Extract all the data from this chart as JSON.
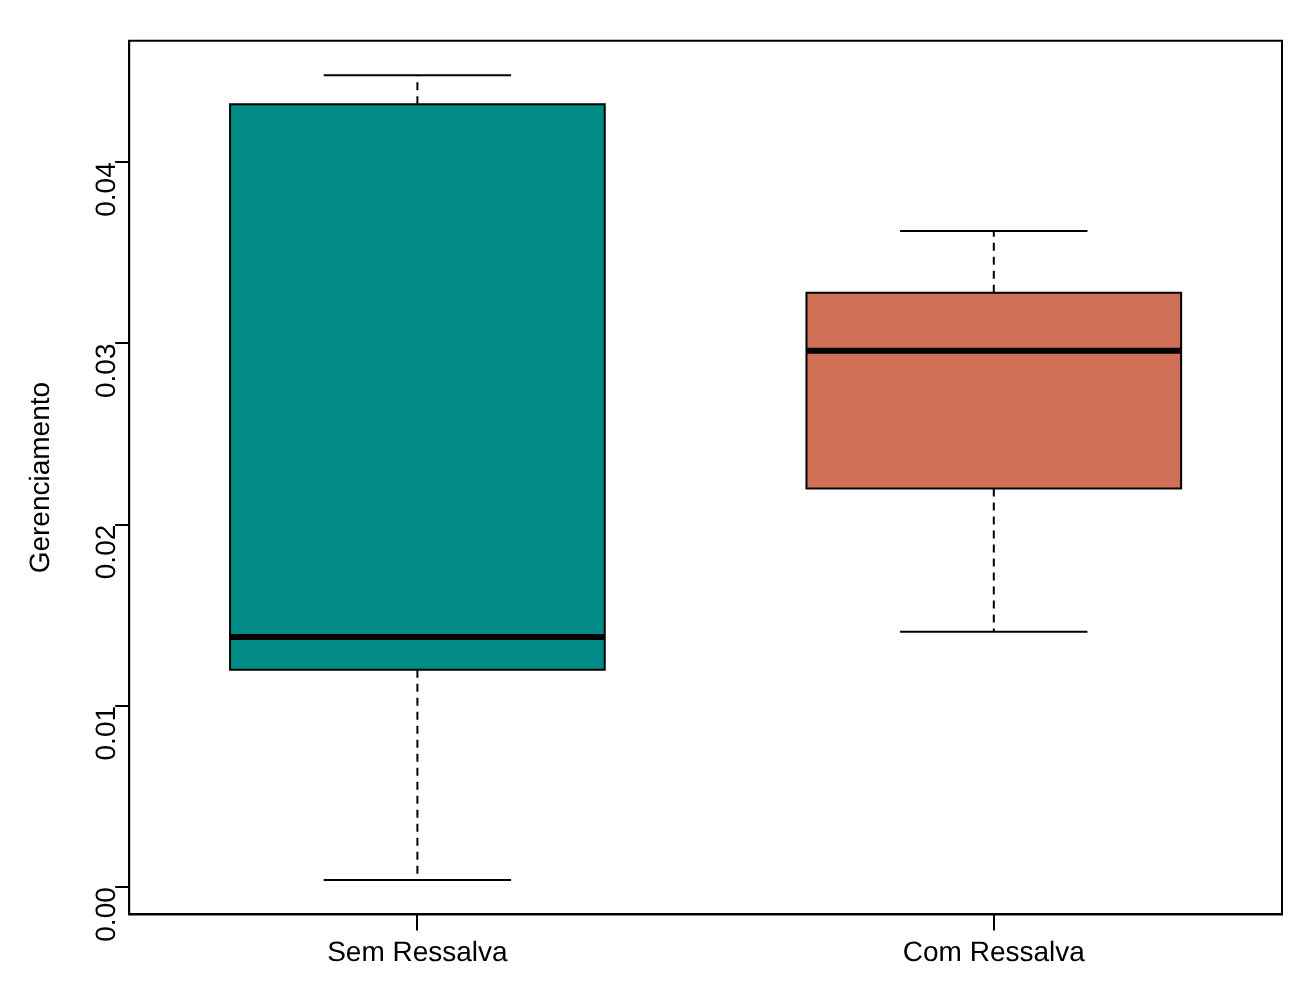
{
  "chart_data": {
    "type": "box",
    "ylabel": "Gerenciamento",
    "categories": [
      "Sem Ressalva",
      "Com Ressalva"
    ],
    "colors": [
      "#008b87",
      "#d07157"
    ],
    "boxes": [
      {
        "low": 0.0004,
        "q1": 0.012,
        "median": 0.0138,
        "q3": 0.0432,
        "high": 0.0448
      },
      {
        "low": 0.0141,
        "q1": 0.022,
        "median": 0.0296,
        "q3": 0.0328,
        "high": 0.0362
      }
    ],
    "ylim": [
      -0.0015,
      0.0467
    ],
    "yticks": [
      {
        "value": 0,
        "label": "0.00"
      },
      {
        "value": 0.01,
        "label": "0.01"
      },
      {
        "value": 0.02,
        "label": "0.02"
      },
      {
        "value": 0.03,
        "label": "0.03"
      },
      {
        "value": 0.04,
        "label": "0.04"
      }
    ],
    "grid": false,
    "legend": false
  }
}
